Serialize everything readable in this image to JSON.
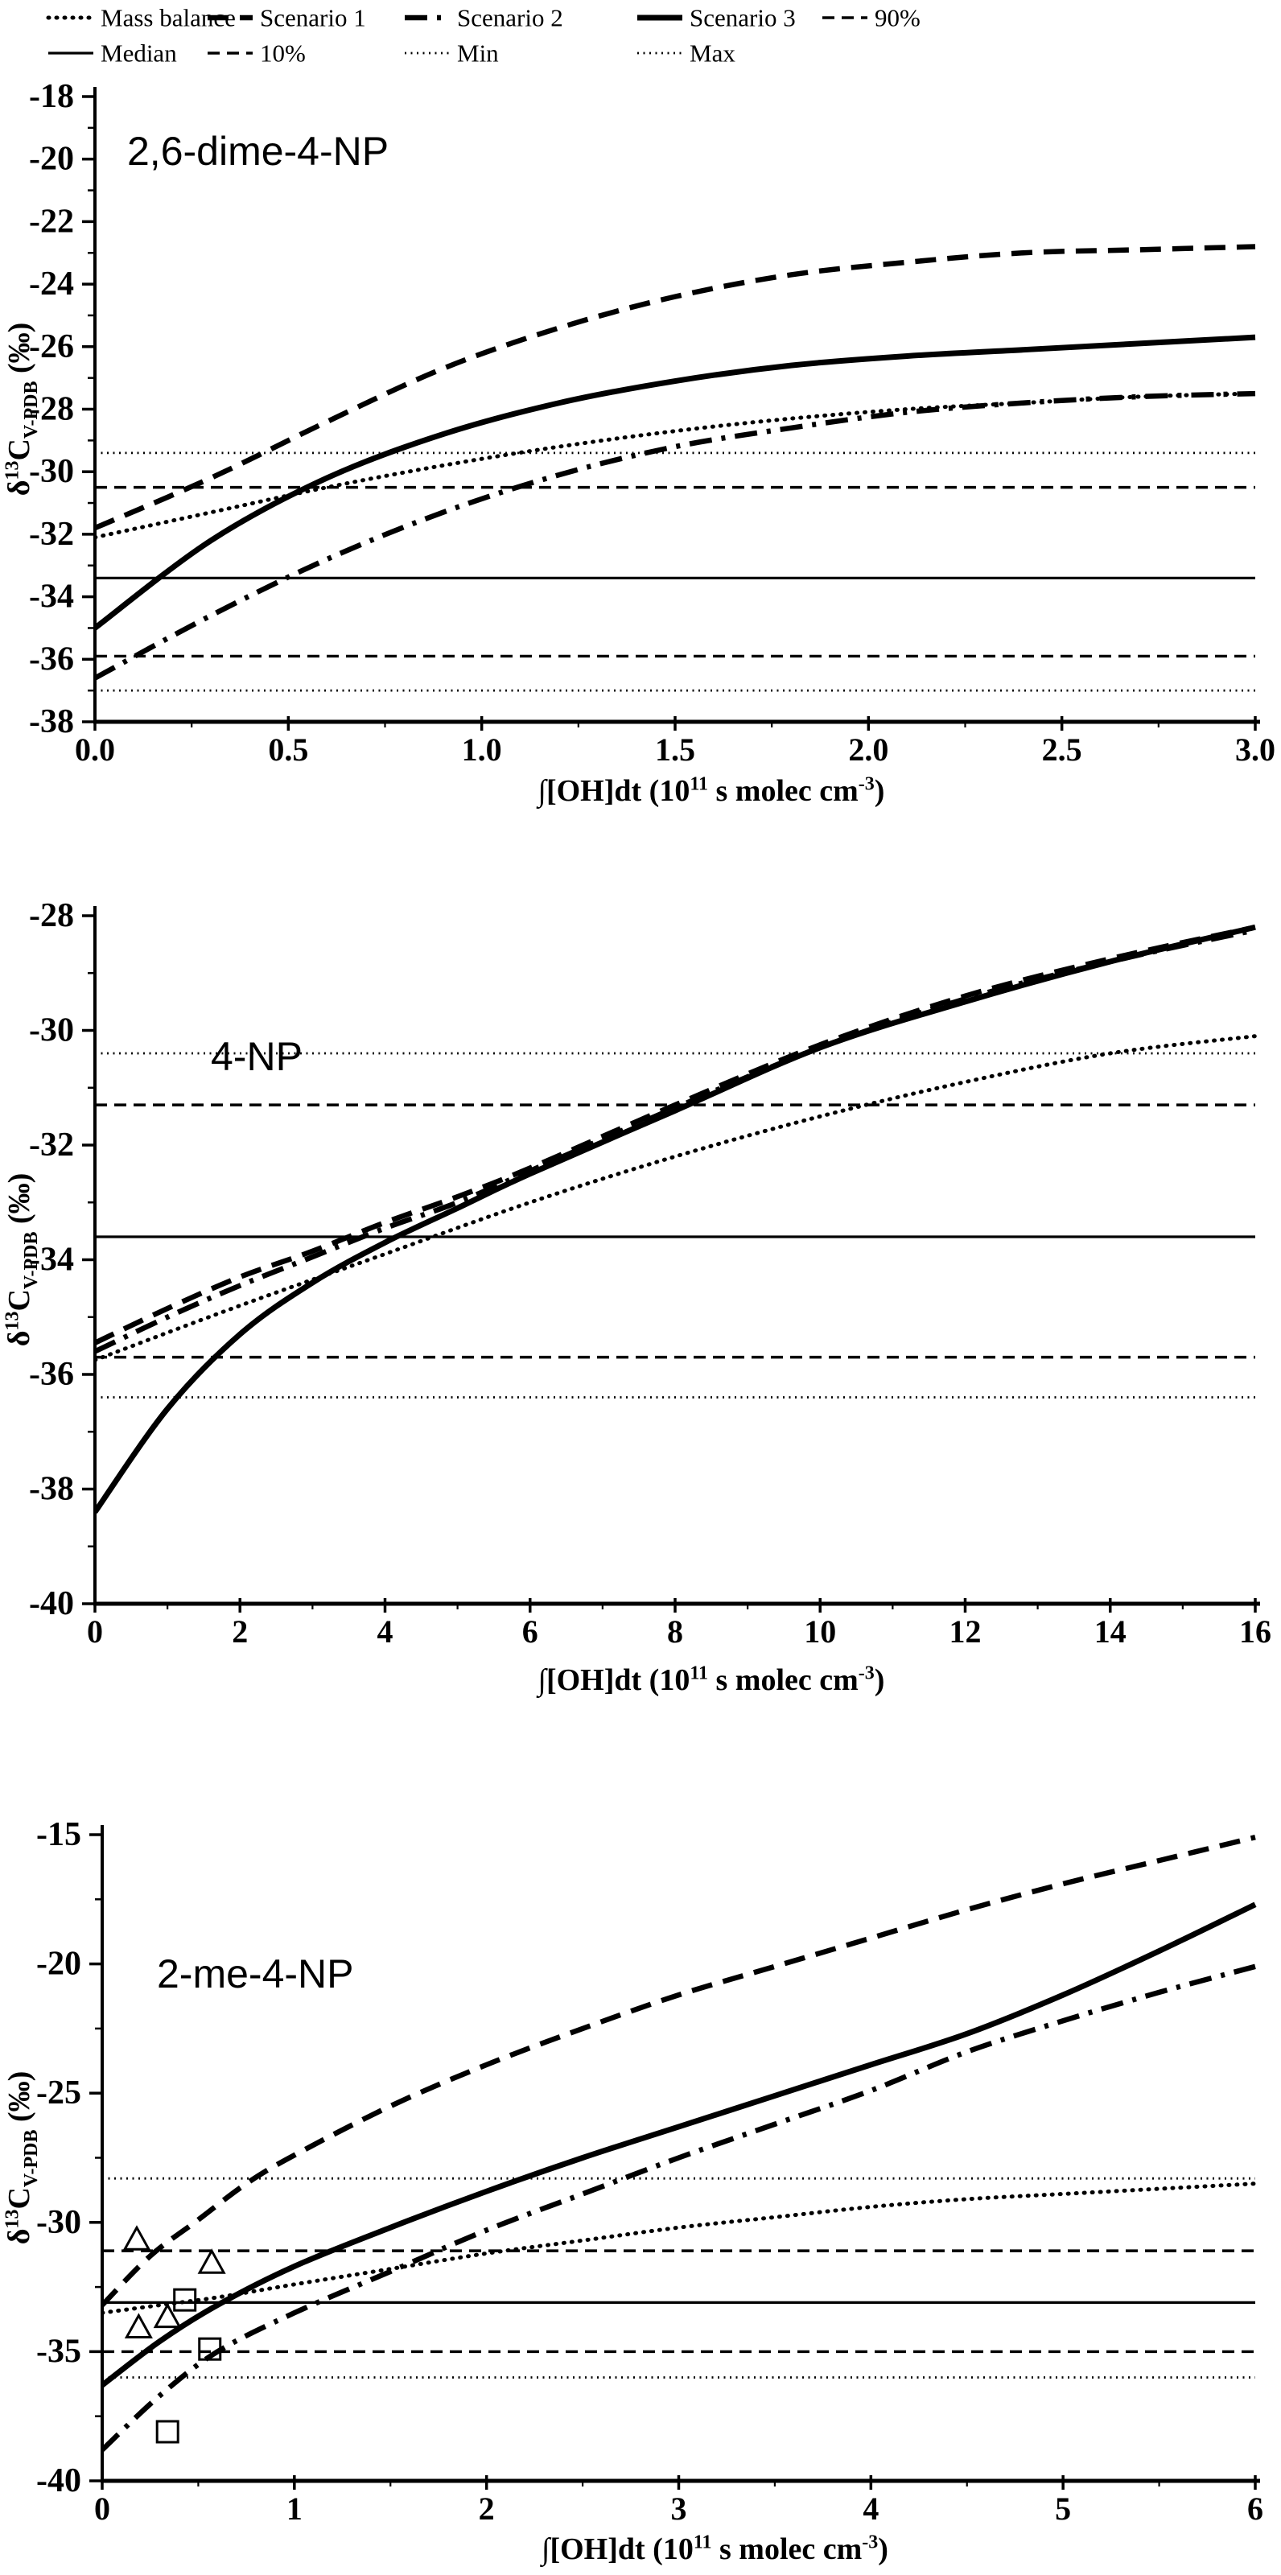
{
  "figure": {
    "background": "#ffffff",
    "ink": "#000000",
    "xlabel": "∫[OH]dt (10^11 s molec cm^-3)",
    "ylabel": "δ13C V-PDB (‰)",
    "xlabel_parts": [
      [
        "∫[OH]dt (10",
        "n"
      ],
      [
        "11",
        "s"
      ],
      [
        " s molec cm",
        "n"
      ],
      [
        "-3",
        "s"
      ],
      [
        ")",
        "n"
      ]
    ],
    "ylabel_parts": [
      [
        "δ",
        "n"
      ],
      [
        "13",
        "s"
      ],
      [
        "C",
        "n"
      ],
      [
        "V-PDB",
        "b"
      ],
      [
        " (‰)",
        "n"
      ]
    ]
  },
  "legend": {
    "rows": [
      [
        {
          "label": "Mass balance",
          "style": "mass",
          "x": 60
        },
        {
          "label": "Scenario 1",
          "style": "s1",
          "x": 258
        },
        {
          "label": "Scenario 2",
          "style": "s2",
          "x": 503
        },
        {
          "label": "Scenario 3",
          "style": "s3",
          "x": 792
        },
        {
          "label": "90%",
          "style": "p90",
          "x": 1022
        }
      ],
      [
        {
          "label": "Median",
          "style": "median",
          "x": 60
        },
        {
          "label": "10%",
          "style": "p10",
          "x": 258
        },
        {
          "label": "Min",
          "style": "minmax",
          "x": 503
        },
        {
          "label": "Max",
          "style": "minmax",
          "x": 792
        }
      ]
    ]
  },
  "chart_data": [
    {
      "id": "chart-1",
      "type": "line",
      "title": "2,6-dime-4-NP",
      "xlabel": "∫[OH]dt (10^11 s molec cm^-3)",
      "ylabel": "δ13C V-PDB (‰)",
      "xlim": [
        0,
        3
      ],
      "ylim": [
        -38,
        -18
      ],
      "xticks": [
        0.0,
        0.5,
        1.0,
        1.5,
        2.0,
        2.5,
        3.0
      ],
      "xtick_labels": [
        "0.0",
        "0.5",
        "1.0",
        "1.5",
        "2.0",
        "2.5",
        "3.0"
      ],
      "yticks": [
        -18,
        -20,
        -22,
        -24,
        -26,
        -28,
        -30,
        -32,
        -34,
        -36,
        -38
      ],
      "grid": false,
      "ref_lines": [
        {
          "name": "Max",
          "style": "minmax",
          "value": -29.4
        },
        {
          "name": "90%",
          "style": "p90",
          "value": -30.5
        },
        {
          "name": "Median",
          "style": "median",
          "value": -33.4
        },
        {
          "name": "10%",
          "style": "p10",
          "value": -35.9
        },
        {
          "name": "Min",
          "style": "minmax",
          "value": -37.0
        }
      ],
      "series": [
        {
          "name": "Mass balance",
          "style": "mass",
          "points": [
            [
              0,
              -32.1
            ],
            [
              0.3,
              -31.3
            ],
            [
              0.6,
              -30.5
            ],
            [
              0.9,
              -29.8
            ],
            [
              1.2,
              -29.2
            ],
            [
              1.5,
              -28.7
            ],
            [
              1.8,
              -28.3
            ],
            [
              2.1,
              -28.0
            ],
            [
              2.4,
              -27.8
            ],
            [
              2.7,
              -27.6
            ],
            [
              3,
              -27.5
            ]
          ]
        },
        {
          "name": "Scenario 1",
          "style": "s1",
          "points": [
            [
              0,
              -31.8
            ],
            [
              0.3,
              -30.2
            ],
            [
              0.6,
              -28.4
            ],
            [
              0.9,
              -26.7
            ],
            [
              1.2,
              -25.4
            ],
            [
              1.5,
              -24.4
            ],
            [
              1.8,
              -23.7
            ],
            [
              2.1,
              -23.3
            ],
            [
              2.4,
              -23.0
            ],
            [
              2.7,
              -22.9
            ],
            [
              3,
              -22.8
            ]
          ]
        },
        {
          "name": "Scenario 2",
          "style": "s2",
          "points": [
            [
              0,
              -36.6
            ],
            [
              0.3,
              -34.6
            ],
            [
              0.6,
              -32.8
            ],
            [
              0.9,
              -31.3
            ],
            [
              1.2,
              -30.1
            ],
            [
              1.5,
              -29.2
            ],
            [
              1.8,
              -28.6
            ],
            [
              2.1,
              -28.1
            ],
            [
              2.4,
              -27.8
            ],
            [
              2.7,
              -27.6
            ],
            [
              3,
              -27.5
            ]
          ]
        },
        {
          "name": "Scenario 3",
          "style": "s3",
          "points": [
            [
              0,
              -35.0
            ],
            [
              0.3,
              -32.2
            ],
            [
              0.6,
              -30.2
            ],
            [
              0.9,
              -28.8
            ],
            [
              1.2,
              -27.8
            ],
            [
              1.5,
              -27.1
            ],
            [
              1.8,
              -26.6
            ],
            [
              2.1,
              -26.3
            ],
            [
              2.4,
              -26.1
            ],
            [
              2.7,
              -25.9
            ],
            [
              3,
              -25.7
            ]
          ]
        }
      ],
      "markers": []
    },
    {
      "id": "chart-2",
      "type": "line",
      "title": "4-NP",
      "xlabel": "∫[OH]dt (10^11 s molec cm^-3)",
      "ylabel": "δ13C V-PDB (‰)",
      "xlim": [
        0,
        16
      ],
      "ylim": [
        -40,
        -28
      ],
      "xticks": [
        0,
        2,
        4,
        6,
        8,
        10,
        12,
        14,
        16
      ],
      "xtick_labels": [
        "0",
        "2",
        "4",
        "6",
        "8",
        "10",
        "12",
        "14",
        "16"
      ],
      "yticks": [
        -28,
        -30,
        -32,
        -34,
        -36,
        -38,
        -40
      ],
      "grid": false,
      "ref_lines": [
        {
          "name": "Max",
          "style": "minmax",
          "value": -30.4
        },
        {
          "name": "90%",
          "style": "p90",
          "value": -31.3
        },
        {
          "name": "Median",
          "style": "median",
          "value": -33.6
        },
        {
          "name": "10%",
          "style": "p10",
          "value": -35.7
        },
        {
          "name": "Min",
          "style": "minmax",
          "value": -36.4
        }
      ],
      "series": [
        {
          "name": "Mass balance",
          "style": "mass",
          "points": [
            [
              0,
              -35.75
            ],
            [
              2,
              -34.8
            ],
            [
              4,
              -33.9
            ],
            [
              6,
              -33.0
            ],
            [
              8,
              -32.2
            ],
            [
              10,
              -31.5
            ],
            [
              12,
              -30.9
            ],
            [
              14,
              -30.4
            ],
            [
              16,
              -30.1
            ]
          ]
        },
        {
          "name": "Scenario 1",
          "style": "s1",
          "points": [
            [
              0,
              -35.45
            ],
            [
              1,
              -34.85
            ],
            [
              2,
              -34.3
            ],
            [
              3,
              -33.85
            ],
            [
              4,
              -33.35
            ],
            [
              5,
              -32.9
            ],
            [
              6,
              -32.4
            ],
            [
              8,
              -31.3
            ],
            [
              10,
              -30.25
            ],
            [
              12,
              -29.4
            ],
            [
              14,
              -28.75
            ],
            [
              16,
              -28.2
            ]
          ]
        },
        {
          "name": "Scenario 2",
          "style": "s2",
          "points": [
            [
              0,
              -35.6
            ],
            [
              1,
              -35.0
            ],
            [
              2,
              -34.45
            ],
            [
              3,
              -33.95
            ],
            [
              4,
              -33.45
            ],
            [
              5,
              -33.0
            ],
            [
              6,
              -32.45
            ],
            [
              8,
              -31.35
            ],
            [
              10,
              -30.3
            ],
            [
              12,
              -29.45
            ],
            [
              14,
              -28.8
            ],
            [
              16,
              -28.25
            ]
          ]
        },
        {
          "name": "Scenario 3",
          "style": "s3",
          "points": [
            [
              0,
              -38.4
            ],
            [
              1,
              -36.6
            ],
            [
              2,
              -35.3
            ],
            [
              3,
              -34.4
            ],
            [
              4,
              -33.7
            ],
            [
              5,
              -33.1
            ],
            [
              6,
              -32.5
            ],
            [
              8,
              -31.4
            ],
            [
              10,
              -30.3
            ],
            [
              12,
              -29.5
            ],
            [
              14,
              -28.8
            ],
            [
              16,
              -28.2
            ]
          ]
        }
      ],
      "markers": []
    },
    {
      "id": "chart-3",
      "type": "line",
      "title": "2-me-4-NP",
      "xlabel": "∫[OH]dt (10^11 s molec cm^-3)",
      "ylabel": "δ13C V-PDB (‰)",
      "xlim": [
        0,
        6
      ],
      "ylim": [
        -40,
        -15
      ],
      "xticks": [
        0,
        1,
        2,
        3,
        4,
        5,
        6
      ],
      "xtick_labels": [
        "0",
        "1",
        "2",
        "3",
        "4",
        "5",
        "6"
      ],
      "yticks": [
        -15,
        -20,
        -25,
        -30,
        -35,
        -40
      ],
      "grid": false,
      "ref_lines": [
        {
          "name": "Max",
          "style": "minmax",
          "value": -28.3
        },
        {
          "name": "90%",
          "style": "p90",
          "value": -31.1
        },
        {
          "name": "Median",
          "style": "median",
          "value": -33.1
        },
        {
          "name": "10%",
          "style": "p10",
          "value": -35.0
        },
        {
          "name": "Min",
          "style": "minmax",
          "value": -36.0
        }
      ],
      "series": [
        {
          "name": "Mass balance",
          "style": "mass",
          "points": [
            [
              0,
              -33.5
            ],
            [
              0.3,
              -33.2
            ],
            [
              0.6,
              -32.9
            ],
            [
              1,
              -32.4
            ],
            [
              1.5,
              -31.8
            ],
            [
              2,
              -31.2
            ],
            [
              2.5,
              -30.7
            ],
            [
              3,
              -30.2
            ],
            [
              3.5,
              -29.8
            ],
            [
              4,
              -29.4
            ],
            [
              4.5,
              -29.1
            ],
            [
              5,
              -28.9
            ],
            [
              5.5,
              -28.7
            ],
            [
              6,
              -28.5
            ]
          ]
        },
        {
          "name": "Scenario 1",
          "style": "s1",
          "points": [
            [
              0,
              -33.2
            ],
            [
              0.25,
              -31.3
            ],
            [
              0.5,
              -29.9
            ],
            [
              0.75,
              -28.5
            ],
            [
              1,
              -27.4
            ],
            [
              1.5,
              -25.5
            ],
            [
              2,
              -23.9
            ],
            [
              2.5,
              -22.5
            ],
            [
              3,
              -21.2
            ],
            [
              3.5,
              -20.1
            ],
            [
              4,
              -19.0
            ],
            [
              4.5,
              -17.9
            ],
            [
              5,
              -16.9
            ],
            [
              5.5,
              -16.0
            ],
            [
              6,
              -15.1
            ]
          ]
        },
        {
          "name": "Scenario 2",
          "style": "s2",
          "points": [
            [
              0,
              -38.8
            ],
            [
              0.3,
              -36.7
            ],
            [
              0.6,
              -35.0
            ],
            [
              1,
              -33.5
            ],
            [
              1.5,
              -31.9
            ],
            [
              2,
              -30.3
            ],
            [
              2.5,
              -28.9
            ],
            [
              3,
              -27.5
            ],
            [
              3.5,
              -26.2
            ],
            [
              4,
              -24.9
            ],
            [
              4.5,
              -23.4
            ],
            [
              5,
              -22.2
            ],
            [
              5.5,
              -21.1
            ],
            [
              6,
              -20.1
            ]
          ]
        },
        {
          "name": "Scenario 3",
          "style": "s3",
          "points": [
            [
              0,
              -36.3
            ],
            [
              0.3,
              -34.6
            ],
            [
              0.6,
              -33.2
            ],
            [
              1,
              -31.7
            ],
            [
              1.5,
              -30.2
            ],
            [
              2,
              -28.8
            ],
            [
              2.5,
              -27.5
            ],
            [
              3,
              -26.3
            ],
            [
              3.5,
              -25.1
            ],
            [
              4,
              -23.9
            ],
            [
              4.5,
              -22.7
            ],
            [
              5,
              -21.2
            ],
            [
              5.5,
              -19.5
            ],
            [
              6,
              -17.7
            ]
          ]
        }
      ],
      "markers": [
        {
          "shape": "triangle",
          "name": "field-data-triangles",
          "points": [
            [
              0.18,
              -30.7
            ],
            [
              0.57,
              -31.6
            ],
            [
              0.34,
              -33.7
            ],
            [
              0.19,
              -34.1
            ]
          ]
        },
        {
          "shape": "square",
          "name": "field-data-squares",
          "points": [
            [
              0.43,
              -33.0
            ],
            [
              0.56,
              -34.9
            ],
            [
              0.34,
              -38.1
            ]
          ]
        }
      ]
    }
  ]
}
